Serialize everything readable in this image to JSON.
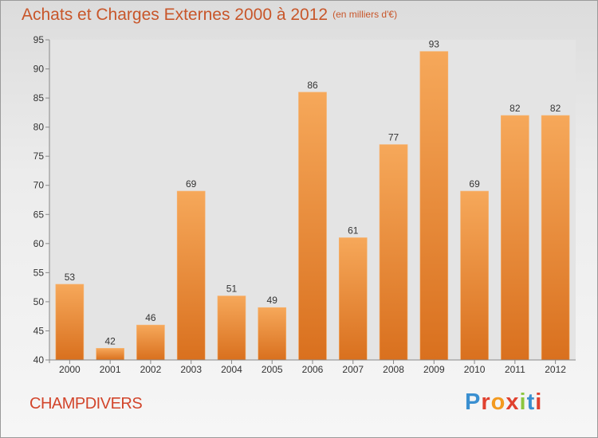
{
  "header": {
    "title": "Achats et Charges Externes 2000 à 2012",
    "unit": "(en milliers d'€)"
  },
  "footer": {
    "commune": "CHAMPDIVERS",
    "logo": "Proxiti"
  },
  "colors": {
    "title": "#c8562a",
    "commune": "#d2452b",
    "bar_top": "#f6a85a",
    "bar_bottom": "#d9701e"
  },
  "chart_data": {
    "type": "bar",
    "title": "Achats et Charges Externes 2000 à 2012",
    "subtitle": "(en milliers d'€)",
    "xlabel": "",
    "ylabel": "",
    "categories": [
      "2000",
      "2001",
      "2002",
      "2003",
      "2004",
      "2005",
      "2006",
      "2007",
      "2008",
      "2009",
      "2010",
      "2011",
      "2012"
    ],
    "values": [
      53,
      42,
      46,
      69,
      51,
      49,
      86,
      61,
      77,
      93,
      69,
      82,
      82
    ],
    "ylim": [
      40,
      95
    ],
    "yticks": [
      40,
      45,
      50,
      55,
      60,
      65,
      70,
      75,
      80,
      85,
      90,
      95
    ],
    "grid": false,
    "legend": "none"
  }
}
